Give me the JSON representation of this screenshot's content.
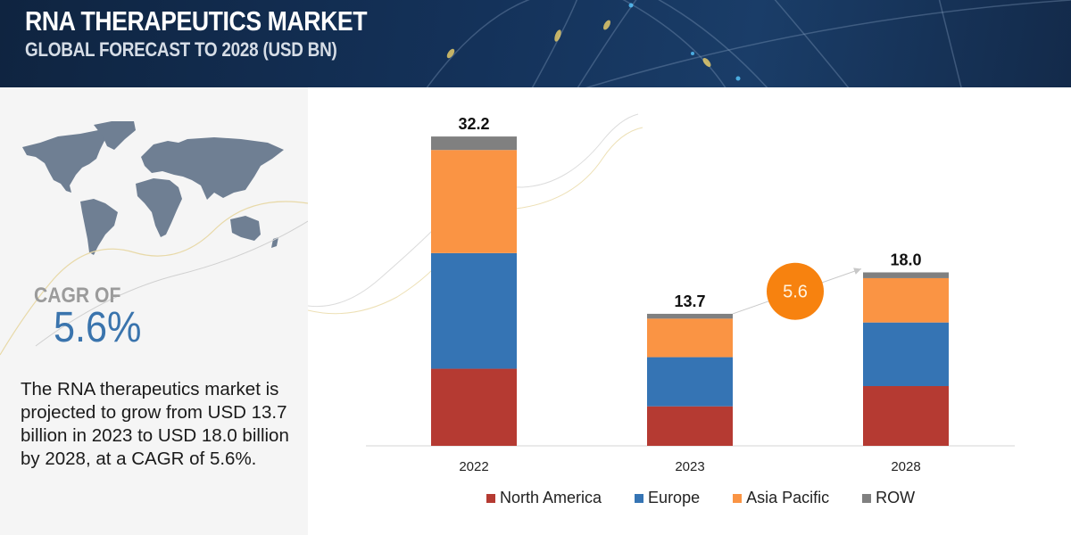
{
  "header": {
    "title": "RNA THERAPEUTICS MARKET",
    "subtitle": "GLOBAL FORECAST TO 2028 (USD BN)"
  },
  "left_panel": {
    "map_icon": "world-map-icon",
    "cagr_label": "CAGR OF",
    "cagr_value": "5.6%",
    "description": "The RNA therapeutics market is projected to grow from USD 13.7 billion in 2023 to USD 18.0 billion by 2028, at a CAGR of 5.6%."
  },
  "chart_data": {
    "type": "bar",
    "stacked": true,
    "title": "RNA THERAPEUTICS MARKET",
    "subtitle": "GLOBAL FORECAST TO 2028 (USD BN)",
    "xlabel": "",
    "ylabel": "",
    "categories": [
      "2022",
      "2023",
      "2028"
    ],
    "totals": [
      "32.2",
      "13.7",
      "18.0"
    ],
    "series": [
      {
        "name": "North America",
        "color": "#b53a32",
        "values": [
          8.0,
          4.1,
          6.2
        ]
      },
      {
        "name": "Europe",
        "color": "#3574b4",
        "values": [
          12.0,
          5.1,
          6.6
        ]
      },
      {
        "name": "Asia Pacific",
        "color": "#fa9444",
        "values": [
          10.7,
          4.0,
          4.6
        ]
      },
      {
        "name": "ROW",
        "color": "#808080",
        "values": [
          1.4,
          0.5,
          0.6
        ]
      }
    ],
    "ylim": [
      0,
      32.2
    ],
    "grid": false,
    "legend_position": "bottom",
    "annotation": {
      "label": "5.6",
      "color": "#f7820f",
      "from": "2023",
      "to": "2028"
    }
  }
}
